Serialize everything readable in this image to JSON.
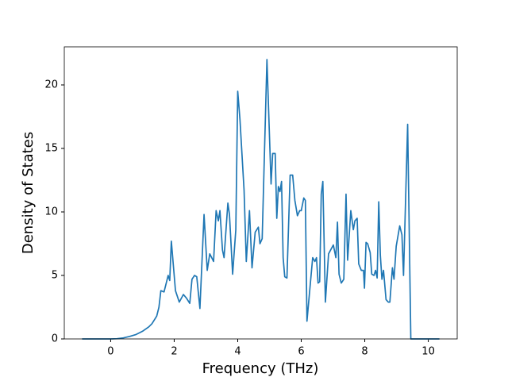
{
  "chart_data": {
    "type": "line",
    "xlabel": "Frequency (THz)",
    "ylabel": "Density of States",
    "xlim": [
      -1.46,
      10.91
    ],
    "ylim": [
      0,
      23
    ],
    "xticks": [
      0,
      2,
      4,
      6,
      8,
      10
    ],
    "yticks": [
      0,
      5,
      10,
      15,
      20
    ],
    "grid": false,
    "series": [
      {
        "color": "#1f77b4",
        "x": [
          -0.9,
          0,
          0.2,
          0.4,
          0.6,
          0.8,
          1.0,
          1.2,
          1.3,
          1.4,
          1.45,
          1.52,
          1.58,
          1.68,
          1.81,
          1.86,
          1.91,
          2.04,
          2.16,
          2.29,
          2.39,
          2.49,
          2.56,
          2.64,
          2.71,
          2.81,
          2.94,
          3.04,
          3.12,
          3.24,
          3.32,
          3.39,
          3.44,
          3.52,
          3.57,
          3.69,
          3.74,
          3.84,
          3.94,
          4.0,
          4.07,
          4.2,
          4.27,
          4.37,
          4.45,
          4.55,
          4.65,
          4.7,
          4.77,
          4.92,
          5.05,
          5.1,
          5.18,
          5.23,
          5.28,
          5.33,
          5.38,
          5.43,
          5.48,
          5.55,
          5.65,
          5.73,
          5.8,
          5.88,
          5.95,
          6.0,
          6.08,
          6.13,
          6.18,
          6.36,
          6.43,
          6.48,
          6.53,
          6.58,
          6.63,
          6.68,
          6.76,
          6.86,
          7.01,
          7.09,
          7.14,
          7.19,
          7.26,
          7.34,
          7.41,
          7.46,
          7.56,
          7.64,
          7.69,
          7.76,
          7.81,
          7.89,
          7.96,
          7.99,
          8.04,
          8.09,
          8.17,
          8.22,
          8.29,
          8.34,
          8.39,
          8.44,
          8.49,
          8.54,
          8.59,
          8.67,
          8.74,
          8.79,
          8.87,
          8.92,
          8.99,
          9.1,
          9.17,
          9.22,
          9.35,
          9.45,
          10.35
        ],
        "values": [
          0,
          0,
          0.02,
          0.08,
          0.2,
          0.35,
          0.6,
          0.95,
          1.2,
          1.6,
          1.8,
          2.5,
          3.8,
          3.7,
          5.0,
          4.6,
          7.7,
          3.8,
          2.9,
          3.5,
          3.2,
          2.8,
          4.7,
          5.0,
          4.9,
          2.4,
          9.8,
          5.4,
          6.7,
          6.1,
          10.1,
          9.3,
          10.1,
          7.0,
          6.4,
          10.7,
          9.8,
          5.1,
          8.6,
          19.5,
          17.3,
          11.7,
          6.1,
          10.1,
          5.6,
          8.4,
          8.8,
          7.5,
          7.9,
          22.0,
          12.2,
          14.6,
          14.6,
          9.5,
          12.0,
          11.6,
          12.4,
          6.4,
          4.9,
          4.8,
          12.9,
          12.9,
          10.9,
          9.7,
          10.1,
          10.1,
          11.1,
          10.9,
          1.4,
          6.4,
          6.1,
          6.4,
          4.4,
          4.5,
          11.4,
          12.4,
          2.9,
          6.7,
          7.4,
          6.4,
          9.2,
          5.1,
          4.4,
          4.7,
          11.4,
          6.2,
          10.1,
          8.6,
          9.3,
          9.5,
          5.9,
          5.4,
          5.4,
          4.0,
          7.6,
          7.5,
          6.8,
          5.1,
          5.0,
          5.4,
          4.8,
          10.8,
          6.6,
          4.7,
          5.4,
          3.1,
          2.9,
          2.9,
          5.6,
          4.7,
          7.3,
          8.9,
          8.2,
          5.0,
          16.9,
          0,
          0
        ]
      }
    ]
  }
}
